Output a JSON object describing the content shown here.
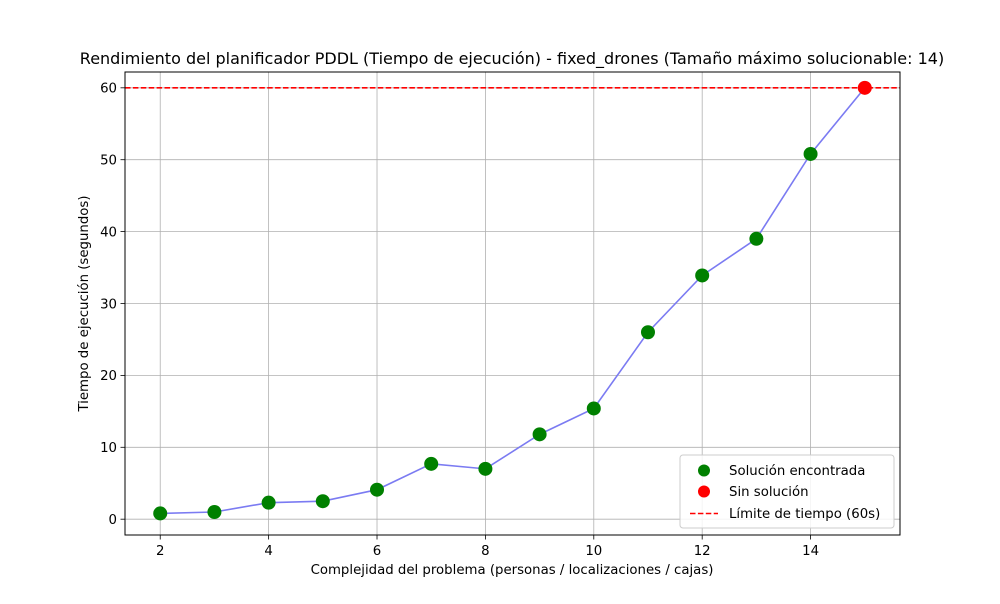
{
  "chart_data": {
    "type": "line",
    "title": "Rendimiento del planificador PDDL (Tiempo de ejecución) - fixed_drones (Tamaño máximo solucionable: 14)",
    "xlabel": "Complejidad del problema (personas / localizaciones / cajas)",
    "ylabel": "Tiempo de ejecución (segundos)",
    "xlim": [
      1.35,
      15.65
    ],
    "ylim": [
      -2.2,
      62.2
    ],
    "xticks": [
      2,
      4,
      6,
      8,
      10,
      12,
      14
    ],
    "yticks": [
      0,
      10,
      20,
      30,
      40,
      50,
      60
    ],
    "grid": true,
    "legend_position": "bottom-right",
    "colors": {
      "line": "#7b7bf2",
      "solved": "#008000",
      "unsolved": "#ff0000",
      "limit": "#ff0000"
    },
    "series": [
      {
        "name": "Solución encontrada",
        "x": [
          2,
          3,
          4,
          5,
          6,
          7,
          8,
          9,
          10,
          11,
          12,
          13,
          14
        ],
        "y": [
          0.8,
          1.0,
          2.3,
          2.5,
          4.1,
          7.7,
          7.0,
          11.8,
          15.4,
          26.0,
          33.9,
          39.0,
          50.8
        ]
      },
      {
        "name": "Sin solución",
        "x": [
          15
        ],
        "y": [
          60
        ]
      }
    ],
    "reference_line": {
      "name": "Límite de tiempo (60s)",
      "y": 60
    }
  }
}
